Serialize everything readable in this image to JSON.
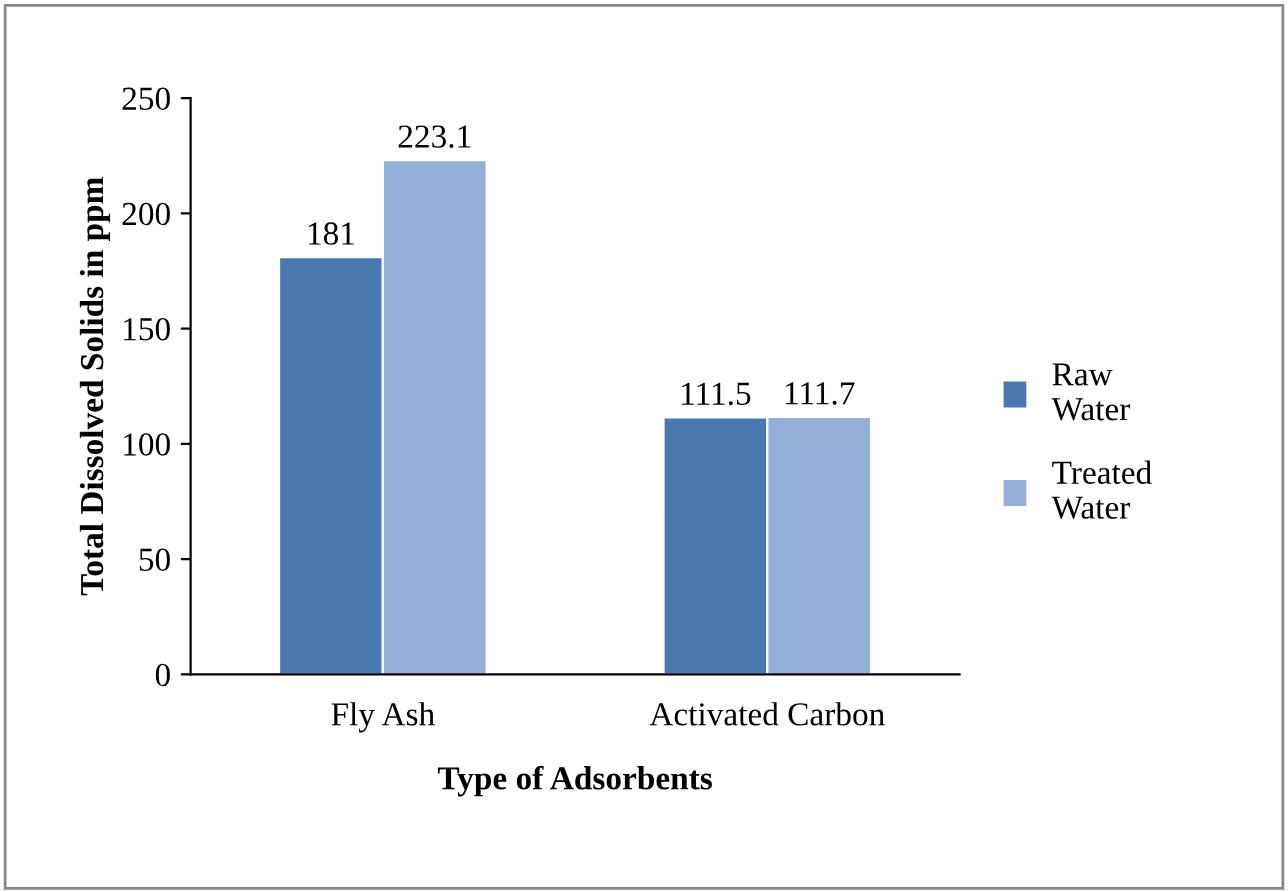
{
  "chart_data": {
    "type": "bar",
    "xlabel": "Type of Adsorbents",
    "ylabel": "Total Dissolved Solids in ppm",
    "categories": [
      "Fly Ash",
      "Activated Carbon"
    ],
    "series": [
      {
        "name": "Raw Water",
        "color": "#4a78b0",
        "values": [
          181,
          111.5
        ]
      },
      {
        "name": "Treated Water",
        "color": "#94afd9",
        "values": [
          223.1,
          111.7
        ]
      }
    ],
    "ylim": [
      0,
      250
    ],
    "yticks": [
      0,
      50,
      100,
      150,
      200,
      250
    ],
    "grid": false,
    "legend": "right",
    "data_labels": true
  }
}
